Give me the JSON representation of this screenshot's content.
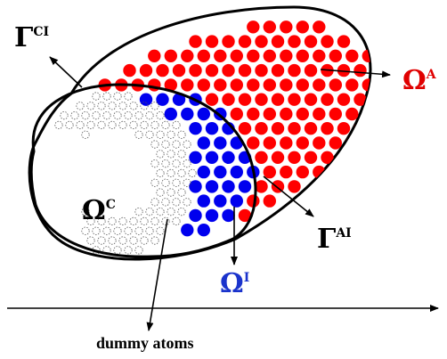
{
  "labels": {
    "gamma_ci": {
      "symbol": "Γ",
      "sup": "CI"
    },
    "omega_a": {
      "symbol": "Ω",
      "sup": "A"
    },
    "gamma_ai": {
      "symbol": "Γ",
      "sup": "AI"
    },
    "omega_i": {
      "symbol": "Ω",
      "sup": "I"
    },
    "omega_c": {
      "symbol": "Ω",
      "sup": "C"
    },
    "dummy_atoms": "dummy atoms"
  },
  "colors": {
    "atom_region_a": "#ff0000",
    "atom_region_i": "#0000ee",
    "label_a": "#e00000",
    "label_i": "#1a33cc",
    "outline": "#000000"
  }
}
